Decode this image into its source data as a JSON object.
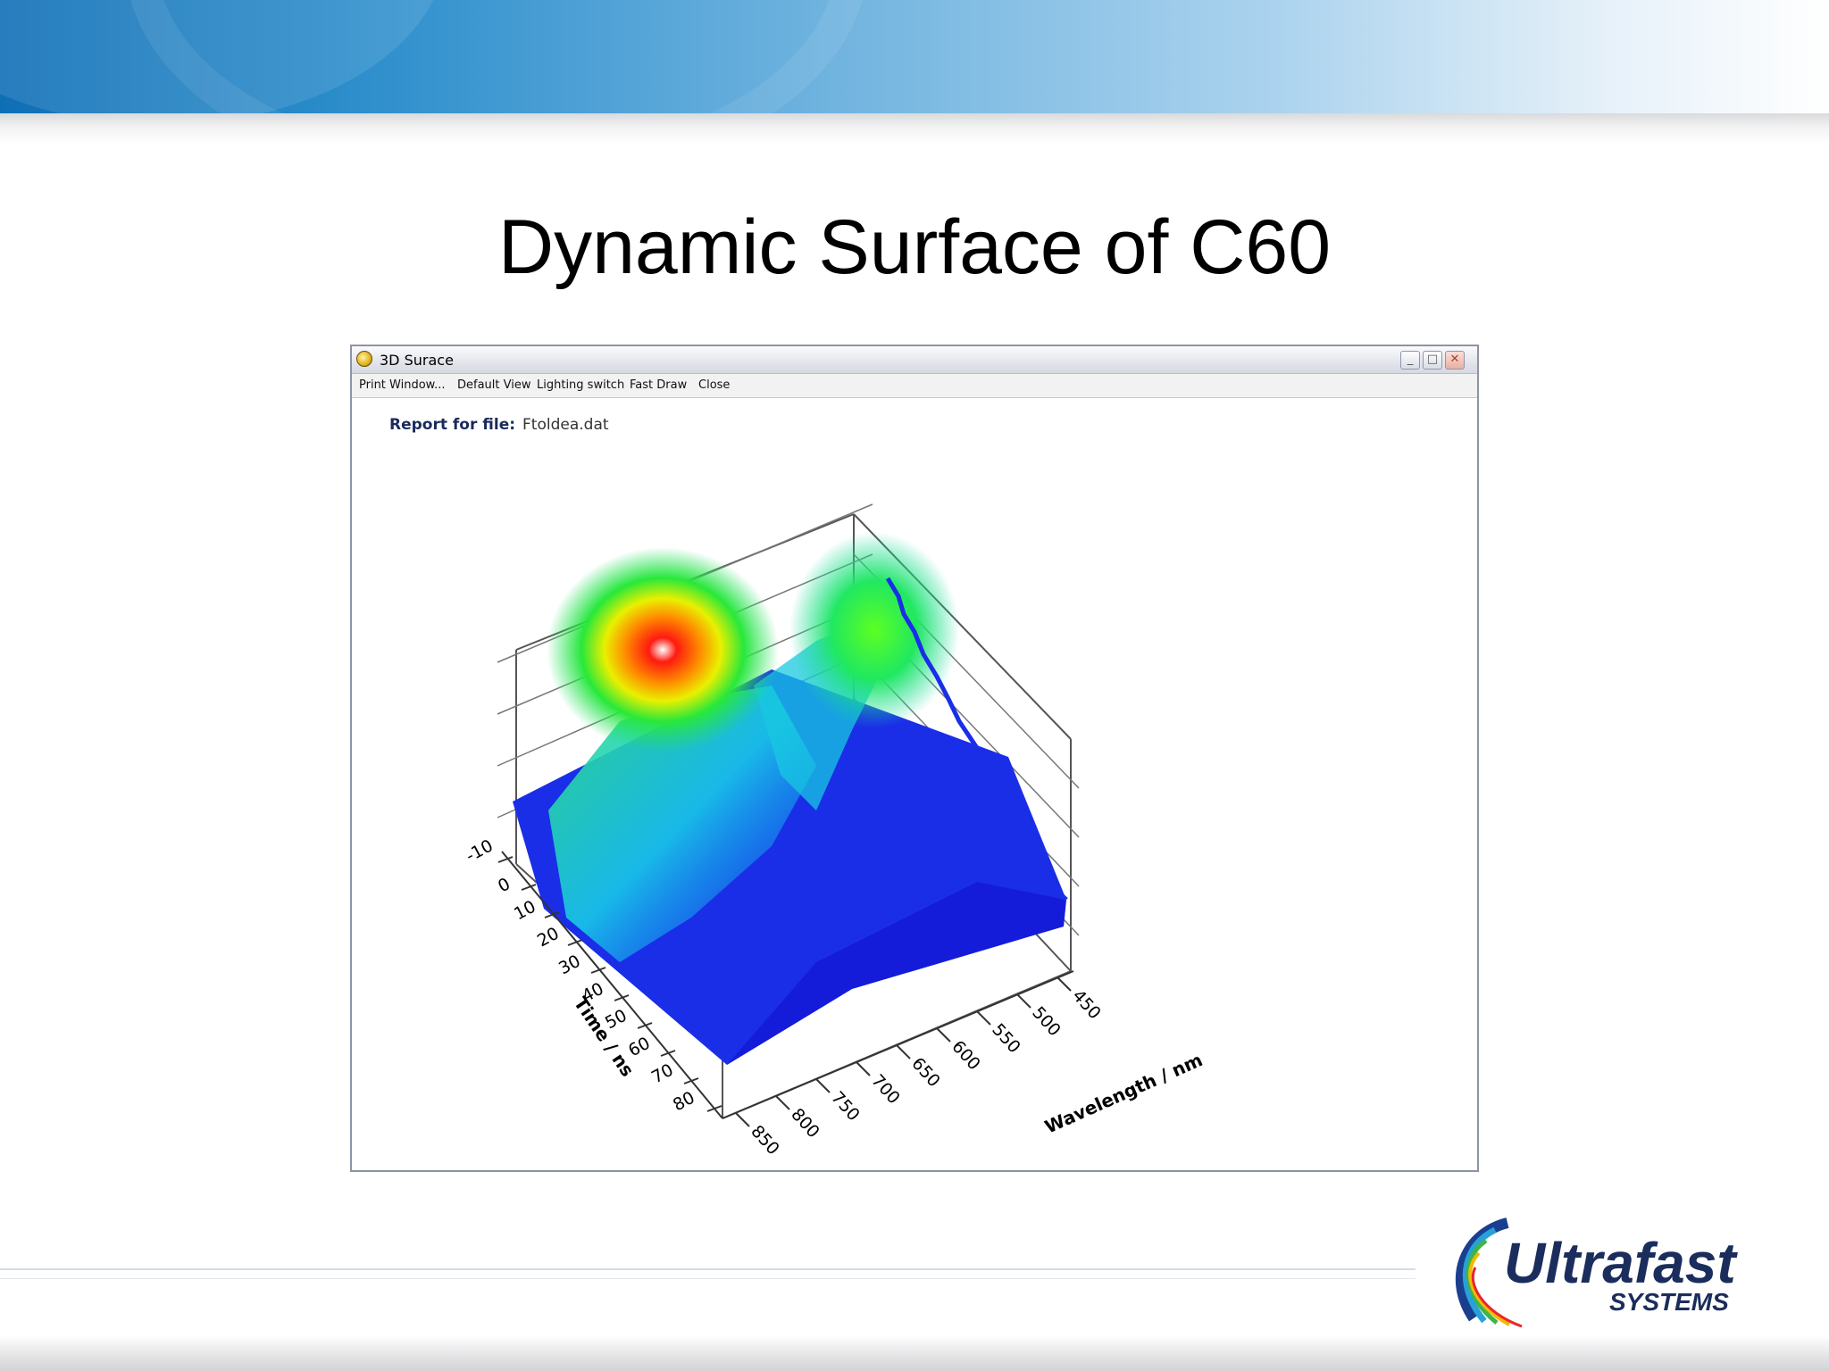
{
  "slide": {
    "title": "Dynamic Surface of C60"
  },
  "window": {
    "title": "3D Surace",
    "buttons": {
      "minimize": "_",
      "maximize": "□",
      "close": "✕"
    }
  },
  "menu": {
    "items": [
      "Print Window...",
      "Default View",
      "Lighting switch",
      "Fast Draw",
      "Close"
    ]
  },
  "report": {
    "label": "Report for file:",
    "filename": "Ftoldea.dat"
  },
  "plot": {
    "time_axis": {
      "label": "Time / ns",
      "ticks": [
        "-10",
        "0",
        "10",
        "20",
        "30",
        "40",
        "50",
        "60",
        "70",
        "80"
      ]
    },
    "wavelength_axis": {
      "label": "Wavelength / nm",
      "ticks": [
        "450",
        "500",
        "550",
        "600",
        "650",
        "700",
        "750",
        "800",
        "850"
      ]
    }
  },
  "logo": {
    "name": "Ultrafast",
    "subtitle": "SYSTEMS"
  },
  "colors": {
    "banner": "#2e8fcc",
    "accent": "#0f6fb6"
  }
}
